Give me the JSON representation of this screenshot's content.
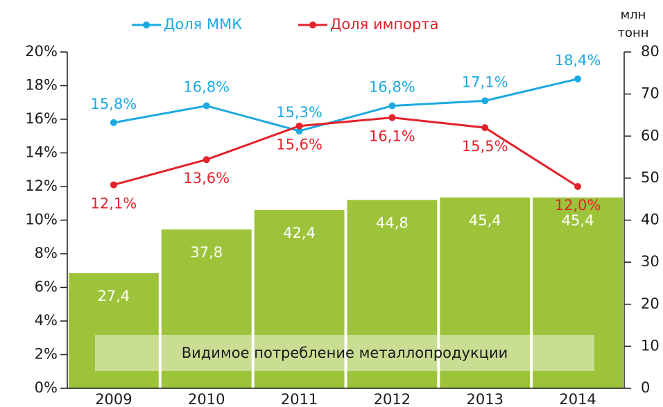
{
  "chart_data": {
    "type": "bar-line",
    "legend_position": "top",
    "y2_label": "млн тонн",
    "annotation": "Видимое потребление металлопродукции",
    "categories": [
      "2009",
      "2010",
      "2011",
      "2012",
      "2013",
      "2014"
    ],
    "bars": {
      "color": "#9dc33b",
      "axis": "y2",
      "values": [
        27.4,
        37.8,
        42.4,
        44.8,
        45.4,
        45.4
      ],
      "value_labels": [
        "27,4",
        "37,8",
        "42,4",
        "44,8",
        "45,4",
        "45,4"
      ]
    },
    "series": [
      {
        "name": "Доля ММК",
        "color": "#1ba9e1",
        "values": [
          15.8,
          16.8,
          15.3,
          16.8,
          17.1,
          18.4
        ],
        "value_labels": [
          "15,8%",
          "16,8%",
          "15,3%",
          "16,8%",
          "17,1%",
          "18,4%"
        ]
      },
      {
        "name": "Доля импорта",
        "color": "#e3222b",
        "values": [
          12.1,
          13.6,
          15.6,
          16.1,
          15.5,
          12.0
        ],
        "value_labels": [
          "12,1%",
          "13,6%",
          "15,6%",
          "16,1%",
          "15,5%",
          "12,0%"
        ]
      }
    ],
    "ylim": [
      0,
      20
    ],
    "yticks": [
      {
        "value": 0,
        "label": "0%"
      },
      {
        "value": 2,
        "label": "2%"
      },
      {
        "value": 4,
        "label": "4%"
      },
      {
        "value": 6,
        "label": "6%"
      },
      {
        "value": 8,
        "label": "8%"
      },
      {
        "value": 10,
        "label": "10%"
      },
      {
        "value": 12,
        "label": "12%"
      },
      {
        "value": 14,
        "label": "14%"
      },
      {
        "value": 16,
        "label": "16%"
      },
      {
        "value": 18,
        "label": "18%"
      },
      {
        "value": 20,
        "label": "20%"
      }
    ],
    "y2lim": [
      0,
      80
    ],
    "y2ticks": [
      0,
      10,
      20,
      30,
      40,
      50,
      60,
      70,
      80
    ]
  }
}
